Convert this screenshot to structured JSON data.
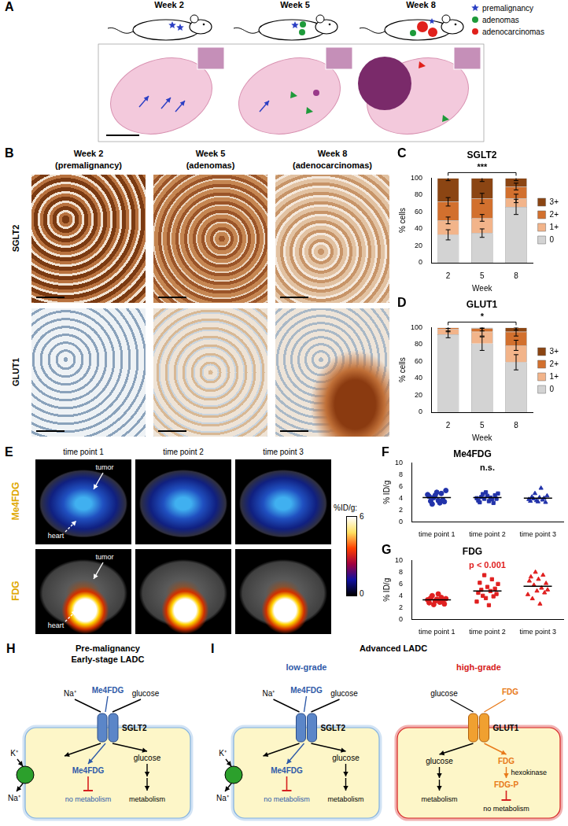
{
  "panels": {
    "A": {
      "letter": "A",
      "weeks": [
        "Week 2",
        "Week 5",
        "Week 8"
      ],
      "legend": [
        {
          "label": "premalignancy",
          "color": "#2b3fc4",
          "marker": "star"
        },
        {
          "label": "adenomas",
          "color": "#1e9a3a",
          "marker": "circle"
        },
        {
          "label": "adenocarcinomas",
          "color": "#e0201b",
          "marker": "circle"
        }
      ]
    },
    "B": {
      "letter": "B",
      "columns": [
        {
          "title": "Week 2",
          "subtitle": "(premalignancy)"
        },
        {
          "title": "Week 5",
          "subtitle": "(adenomas)"
        },
        {
          "title": "Week 8",
          "subtitle": "(adenocarcinomas)"
        }
      ],
      "rows": [
        "SGLT2",
        "GLUT1"
      ]
    },
    "E": {
      "letter": "E",
      "columns": [
        "time point 1",
        "time point 2",
        "time point 3"
      ],
      "rows": [
        "Me4FDG",
        "FDG"
      ],
      "labels": {
        "tumor": "tumor",
        "heart": "heart"
      },
      "colorbar": {
        "title": "%ID/g:",
        "max": 6,
        "min": 0
      }
    },
    "H": {
      "letter": "H",
      "title": [
        "Pre-malignancy",
        "Early-stage LADC"
      ],
      "cell": {
        "transporter": "SGLT2",
        "ion": "Na⁺",
        "tracer": "Me4FDG",
        "substrate": "glucose",
        "tracer_fate": "no metabolism",
        "substrate_fate": "metabolism",
        "pump": [
          "K⁺",
          "Na⁺"
        ]
      }
    },
    "I": {
      "letter": "I",
      "title": "Advanced LADC",
      "cells": [
        {
          "grade": "low-grade",
          "transporter": "SGLT2",
          "ion": "Na⁺",
          "tracer": "Me4FDG",
          "substrate": "glucose",
          "tracer_fate": "no metabolism",
          "substrate_fate": "metabolism",
          "pump": [
            "K⁺",
            "Na⁺"
          ]
        },
        {
          "grade": "high-grade",
          "transporter": "GLUT1",
          "substrate": "glucose",
          "tracer": "FDG",
          "substrate_fate": "metabolism",
          "enzyme": "hexokinase",
          "product": "FDG-P",
          "product_fate": "no metabolism"
        }
      ]
    }
  },
  "chart_data": [
    {
      "panel": "C",
      "type": "bar",
      "stacked": true,
      "title": "SGLT2",
      "categories": [
        "2",
        "5",
        "8"
      ],
      "x_label": "Week",
      "y_label": "% cells",
      "ylim": [
        0,
        100
      ],
      "yticks": [
        0,
        20,
        40,
        60,
        80,
        100
      ],
      "grid": false,
      "legend": "right",
      "annotations": [
        {
          "text": "***"
        }
      ],
      "series": [
        {
          "name": "0",
          "color": "#d3d3d3",
          "values": [
            33,
            35,
            66
          ],
          "errors": [
            6,
            5,
            9
          ]
        },
        {
          "name": "1+",
          "color": "#f2b48a",
          "values": [
            17,
            18,
            10
          ],
          "errors": [
            4,
            4,
            5
          ]
        },
        {
          "name": "2+",
          "color": "#d2702e",
          "values": [
            22,
            23,
            14
          ],
          "errors": [
            5,
            6,
            4
          ]
        },
        {
          "name": "3+",
          "color": "#8b4513",
          "values": [
            28,
            24,
            10
          ],
          "errors": [
            3,
            4,
            3
          ]
        }
      ]
    },
    {
      "panel": "D",
      "type": "bar",
      "stacked": true,
      "title": "GLUT1",
      "categories": [
        "2",
        "5",
        "8"
      ],
      "x_label": "Week",
      "y_label": "% cells",
      "ylim": [
        0,
        100
      ],
      "yticks": [
        0,
        20,
        40,
        60,
        80,
        100
      ],
      "grid": false,
      "legend": "right",
      "annotations": [
        {
          "text": "*"
        }
      ],
      "series": [
        {
          "name": "0",
          "color": "#d3d3d3",
          "values": [
            92,
            81,
            59
          ],
          "errors": [
            4,
            8,
            9
          ]
        },
        {
          "name": "1+",
          "color": "#f2b48a",
          "values": [
            6,
            14,
            20
          ],
          "errors": [
            3,
            5,
            6
          ]
        },
        {
          "name": "2+",
          "color": "#d2702e",
          "values": [
            2,
            4,
            16
          ],
          "errors": [
            1,
            3,
            5
          ]
        },
        {
          "name": "3+",
          "color": "#8b4513",
          "values": [
            0,
            1,
            5
          ],
          "errors": [
            0,
            1,
            3
          ]
        }
      ]
    },
    {
      "panel": "F",
      "type": "scatter",
      "title": "Me4FDG",
      "y_label": "% ID/g",
      "xlim": [
        0.5,
        3.5
      ],
      "xticks": [
        {
          "value": 1,
          "label": "time point 1"
        },
        {
          "value": 2,
          "label": "time point 2"
        },
        {
          "value": 3,
          "label": "time point 3"
        }
      ],
      "ylim": [
        0,
        10
      ],
      "yticks": [
        0,
        2,
        4,
        6,
        8,
        10
      ],
      "grid": false,
      "annotations": [
        {
          "text": "n.s."
        }
      ],
      "series": [
        {
          "color": "#2233aa",
          "marker": "circle",
          "mean": 4.1,
          "x": [
            0.82,
            0.85,
            0.88,
            0.91,
            0.94,
            0.97,
            1.0,
            1.03,
            1.06,
            1.09,
            1.12,
            1.15,
            1.18
          ],
          "values": [
            4.6,
            4.3,
            3.5,
            3.0,
            4.1,
            4.5,
            5.0,
            3.6,
            3.2,
            4.8,
            3.7,
            3.4,
            5.3
          ]
        },
        {
          "color": "#2233aa",
          "marker": "square",
          "mean": 4.1,
          "x": [
            1.79,
            1.82,
            1.85,
            1.88,
            1.91,
            1.94,
            1.97,
            2.0,
            2.03,
            2.06,
            2.09,
            2.12,
            2.15,
            2.18,
            2.21
          ],
          "values": [
            4.0,
            3.6,
            3.3,
            4.2,
            4.7,
            3.9,
            5.0,
            4.4,
            3.5,
            4.1,
            3.8,
            3.2,
            4.5,
            3.9,
            4.8
          ]
        },
        {
          "color": "#2233aa",
          "marker": "triangle",
          "mean": 4.0,
          "x": [
            2.82,
            2.85,
            2.88,
            2.91,
            2.94,
            2.97,
            3.0,
            3.03,
            3.06,
            3.09,
            3.12,
            3.15,
            3.18
          ],
          "values": [
            3.8,
            3.5,
            4.2,
            3.9,
            4.8,
            3.6,
            3.4,
            4.1,
            5.7,
            3.7,
            4.0,
            3.3,
            4.4
          ]
        }
      ]
    },
    {
      "panel": "G",
      "type": "scatter",
      "title": "FDG",
      "y_label": "% ID/g",
      "xlim": [
        0.5,
        3.5
      ],
      "xticks": [
        {
          "value": 1,
          "label": "time point 1"
        },
        {
          "value": 2,
          "label": "time point 2"
        },
        {
          "value": 3,
          "label": "time point 3"
        }
      ],
      "ylim": [
        0,
        10
      ],
      "yticks": [
        0,
        2,
        4,
        6,
        8,
        10
      ],
      "grid": false,
      "annotations": [
        {
          "text": "p < 0.001",
          "color": "#e02020"
        }
      ],
      "series": [
        {
          "color": "#e02020",
          "marker": "circle",
          "mean": 3.3,
          "x": [
            0.82,
            0.85,
            0.88,
            0.91,
            0.94,
            0.97,
            1.0,
            1.03,
            1.06,
            1.09,
            1.12,
            1.15,
            1.18
          ],
          "values": [
            3.3,
            2.8,
            3.6,
            4.0,
            2.5,
            3.1,
            3.4,
            4.3,
            2.9,
            3.7,
            3.0,
            2.6,
            3.5
          ]
        },
        {
          "color": "#e02020",
          "marker": "square",
          "mean": 4.8,
          "x": [
            1.79,
            1.82,
            1.85,
            1.88,
            1.91,
            1.94,
            1.97,
            2.0,
            2.03,
            2.06,
            2.09,
            2.12,
            2.15,
            2.18,
            2.21
          ],
          "values": [
            3.0,
            4.5,
            6.2,
            5.0,
            4.0,
            7.5,
            3.6,
            5.5,
            2.4,
            4.8,
            6.8,
            3.9,
            5.2,
            4.3,
            6.0
          ]
        },
        {
          "color": "#e02020",
          "marker": "triangle",
          "mean": 5.6,
          "x": [
            2.8,
            2.83,
            2.86,
            2.89,
            2.92,
            2.95,
            2.98,
            3.01,
            3.04,
            3.07,
            3.1,
            3.13,
            3.16,
            3.19
          ],
          "values": [
            4.2,
            6.5,
            7.2,
            3.5,
            5.8,
            8.0,
            4.8,
            6.8,
            2.6,
            5.3,
            7.5,
            4.5,
            6.1,
            5.0
          ]
        }
      ]
    }
  ]
}
